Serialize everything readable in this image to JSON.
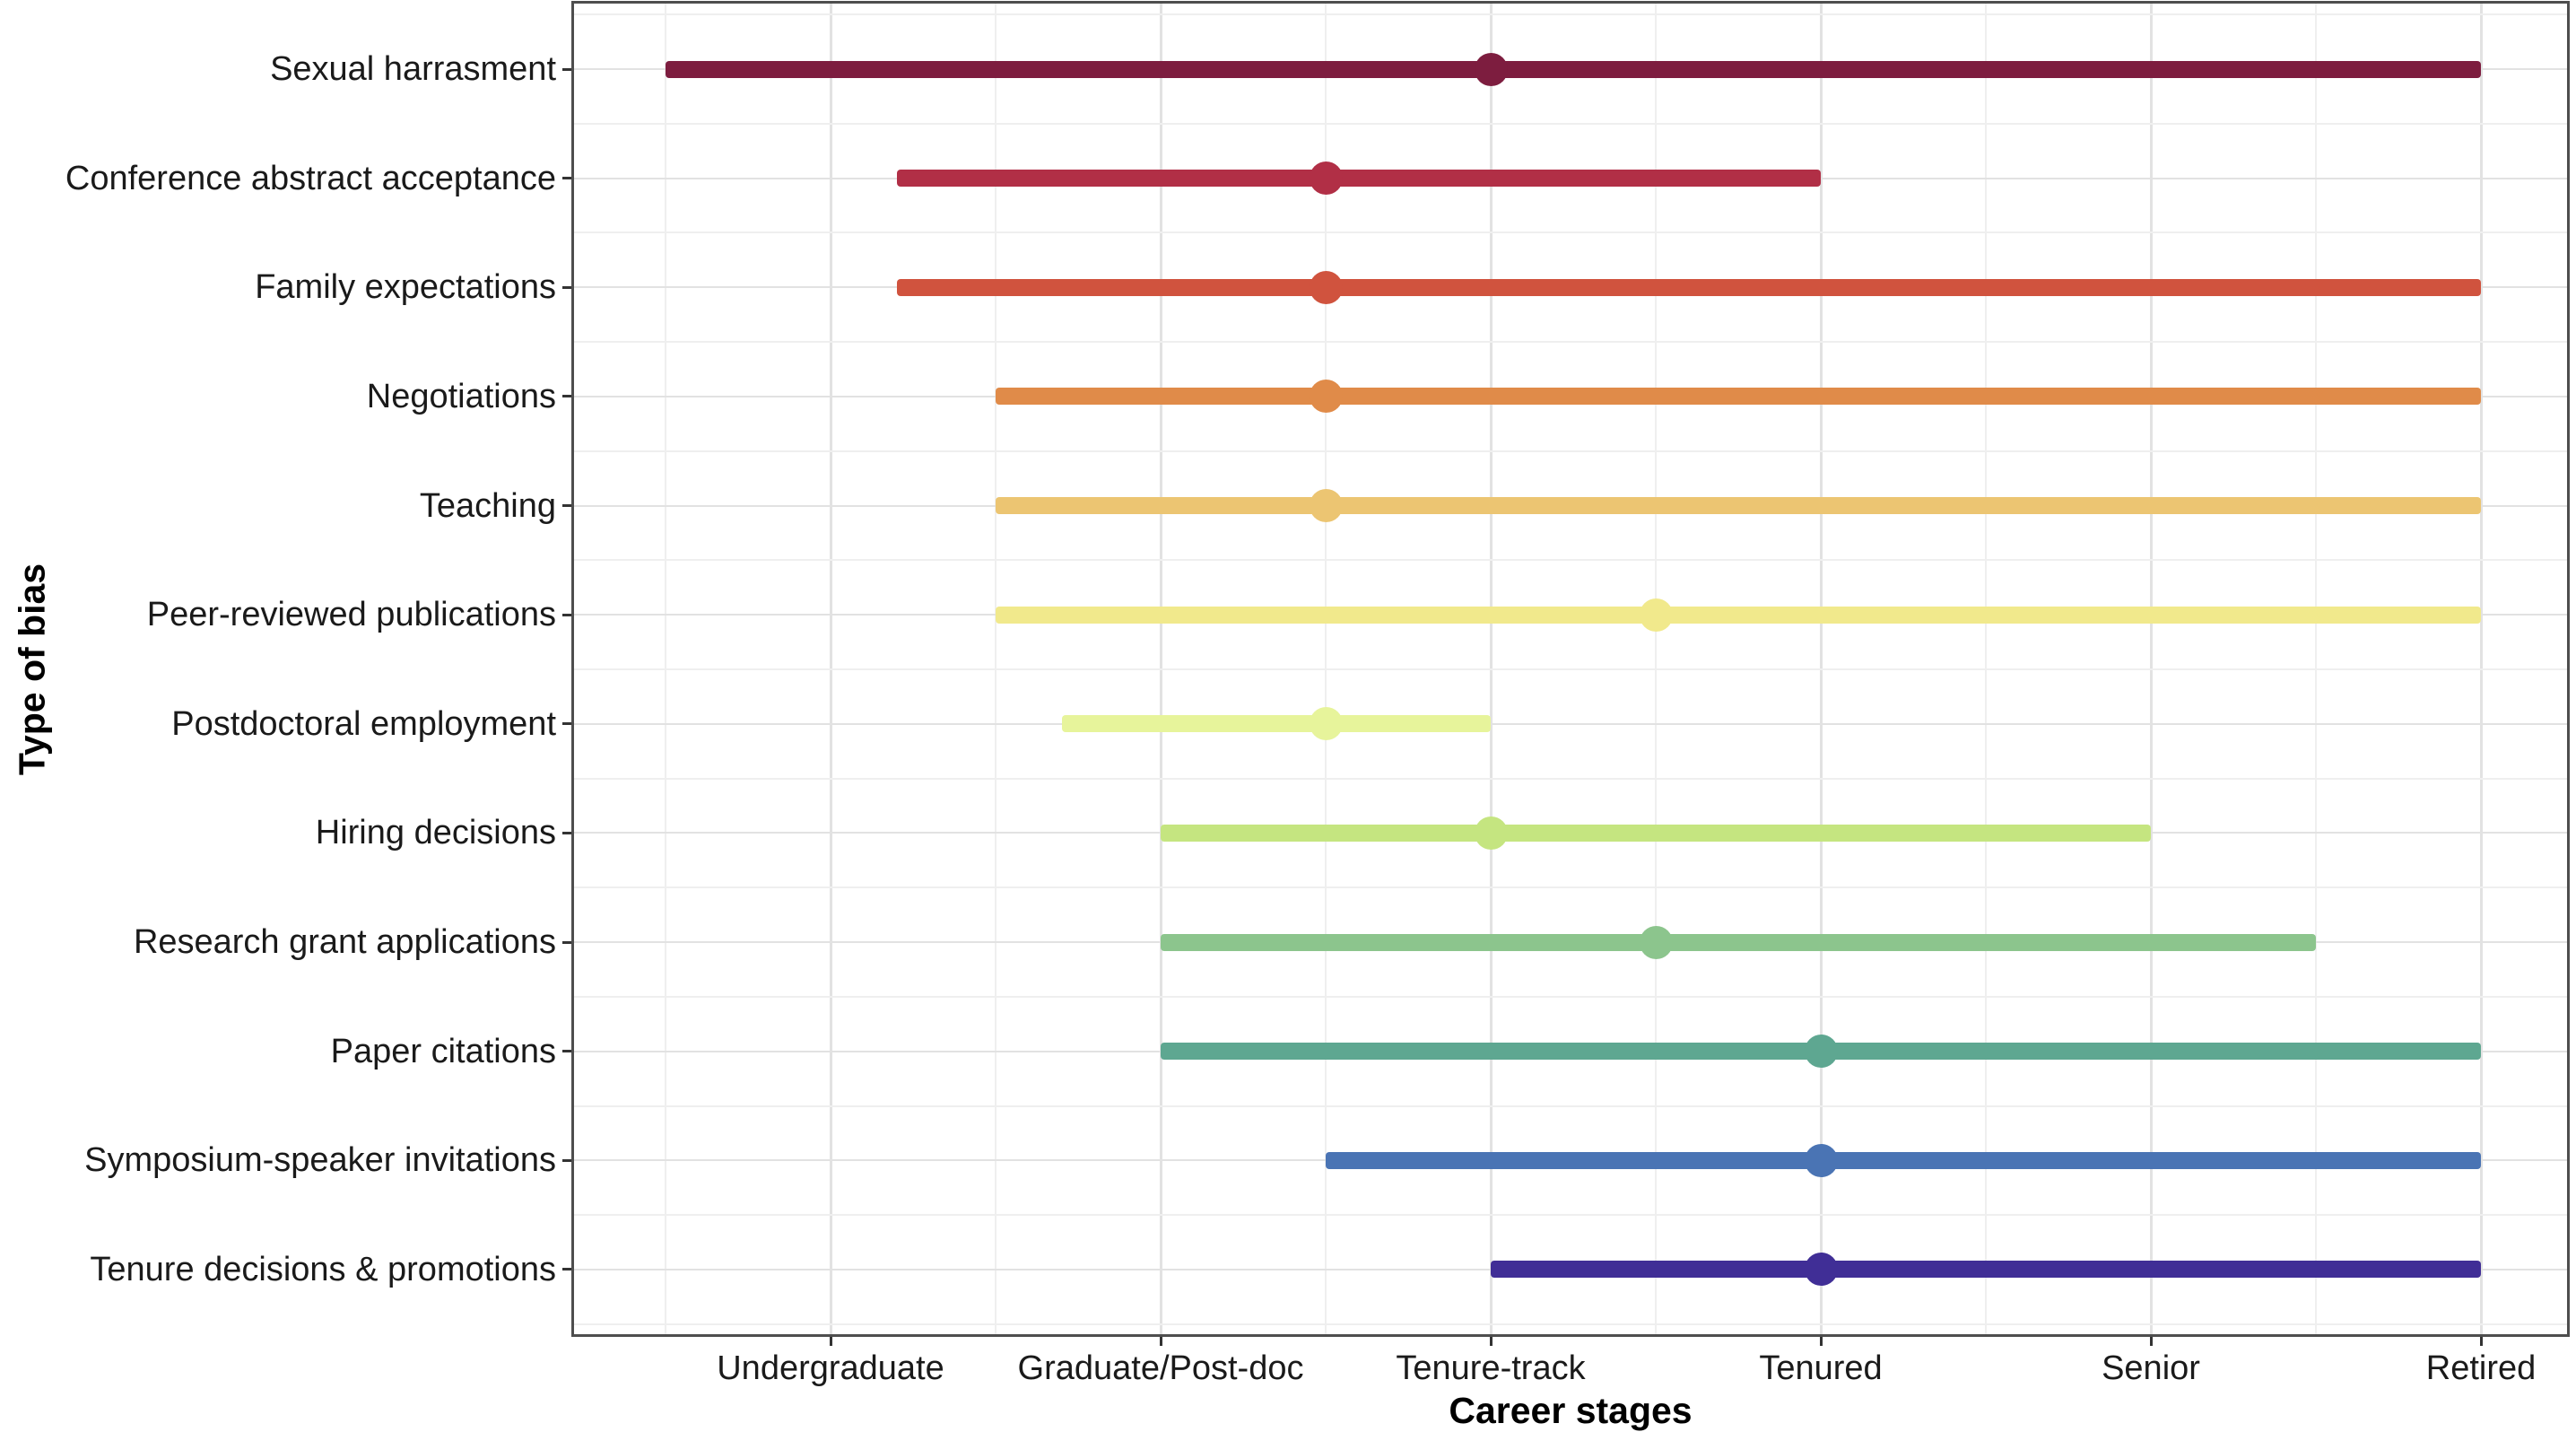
{
  "chart_data": {
    "type": "dumbbell",
    "title": "",
    "xlabel": "Career stages",
    "ylabel": "Type of bias",
    "x_categories": [
      "Undergraduate",
      "Graduate/Post-doc",
      "Tenure-track",
      "Tenured",
      "Senior",
      "Retired"
    ],
    "x_axis_note": "categories mapped to numeric positions 1-6, minor gridlines at half steps",
    "x_range": [
      0.22,
      6.26
    ],
    "grid": "on",
    "legend": "none",
    "rows": [
      {
        "label": "Sexual harrasment",
        "start": 0.5,
        "end": 6.0,
        "dot": 3.0,
        "color": "#7d1d3f"
      },
      {
        "label": "Conference abstract acceptance",
        "start": 1.2,
        "end": 4.0,
        "dot": 2.5,
        "color": "#b12f46"
      },
      {
        "label": "Family expectations",
        "start": 1.2,
        "end": 6.0,
        "dot": 2.5,
        "color": "#d0533e"
      },
      {
        "label": "Negotiations",
        "start": 1.5,
        "end": 6.0,
        "dot": 2.5,
        "color": "#e08b49"
      },
      {
        "label": "Teaching",
        "start": 1.5,
        "end": 6.0,
        "dot": 2.5,
        "color": "#ecc572"
      },
      {
        "label": "Peer-reviewed publications",
        "start": 1.5,
        "end": 6.0,
        "dot": 3.5,
        "color": "#f1e98c"
      },
      {
        "label": "Postdoctoral employment",
        "start": 1.7,
        "end": 3.0,
        "dot": 2.5,
        "color": "#e7f49b"
      },
      {
        "label": "Hiring decisions",
        "start": 2.0,
        "end": 5.0,
        "dot": 3.0,
        "color": "#c5e580"
      },
      {
        "label": "Research grant applications",
        "start": 2.0,
        "end": 5.5,
        "dot": 3.5,
        "color": "#8cc58d"
      },
      {
        "label": "Paper citations",
        "start": 2.0,
        "end": 6.0,
        "dot": 4.0,
        "color": "#5ea791"
      },
      {
        "label": "Symposium-speaker invitations",
        "start": 2.5,
        "end": 6.0,
        "dot": 4.0,
        "color": "#4a74b4"
      },
      {
        "label": "Tenure decisions & promotions",
        "start": 3.0,
        "end": 6.0,
        "dot": 4.0,
        "color": "#402e96"
      }
    ],
    "colors": {
      "grid_major": "#e2e2e2",
      "grid_minor": "#efefef",
      "panel_border": "#4e4e4e",
      "tick": "#333333",
      "text": "#1a1a1a"
    }
  }
}
